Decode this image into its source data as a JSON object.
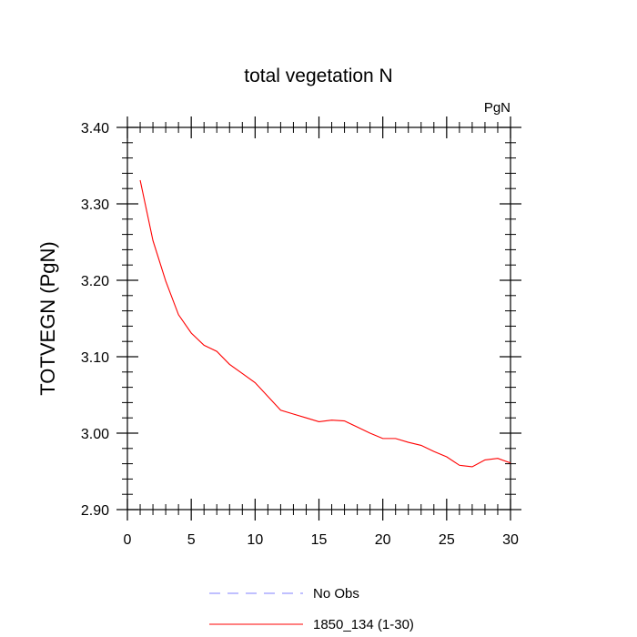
{
  "chart_data": {
    "type": "line",
    "title": "total vegetation N",
    "units_label": "PgN",
    "xlabel": "",
    "ylabel": "TOTVEGN  (PgN)",
    "xlim": [
      0,
      30
    ],
    "ylim": [
      2.9,
      3.4
    ],
    "x_ticks": [
      0,
      5,
      10,
      15,
      20,
      25,
      30
    ],
    "x_tick_labels": [
      "0",
      "5",
      "10",
      "15",
      "20",
      "25",
      "30"
    ],
    "y_ticks": [
      2.9,
      3.0,
      3.1,
      3.2,
      3.3,
      3.4
    ],
    "y_tick_labels": [
      "2.90",
      "3.00",
      "3.10",
      "3.20",
      "3.30",
      "3.40"
    ],
    "grid": false,
    "legend_position": "bottom",
    "series": [
      {
        "name": "No Obs",
        "color": "#8080ff",
        "style": "dashed",
        "x": [],
        "values": []
      },
      {
        "name": "1850_134 (1-30)",
        "color": "#ff0000",
        "style": "solid",
        "x": [
          1,
          2,
          3,
          4,
          5,
          6,
          7,
          8,
          9,
          10,
          11,
          12,
          13,
          14,
          15,
          16,
          17,
          18,
          19,
          20,
          21,
          22,
          23,
          24,
          25,
          26,
          27,
          28,
          29,
          30
        ],
        "values": [
          3.331,
          3.252,
          3.199,
          3.155,
          3.131,
          3.115,
          3.107,
          3.09,
          3.078,
          3.066,
          3.048,
          3.03,
          3.025,
          3.02,
          3.015,
          3.017,
          3.016,
          3.008,
          3.0,
          2.993,
          2.993,
          2.988,
          2.984,
          2.976,
          2.969,
          2.958,
          2.956,
          2.965,
          2.967,
          2.961
        ]
      }
    ]
  }
}
